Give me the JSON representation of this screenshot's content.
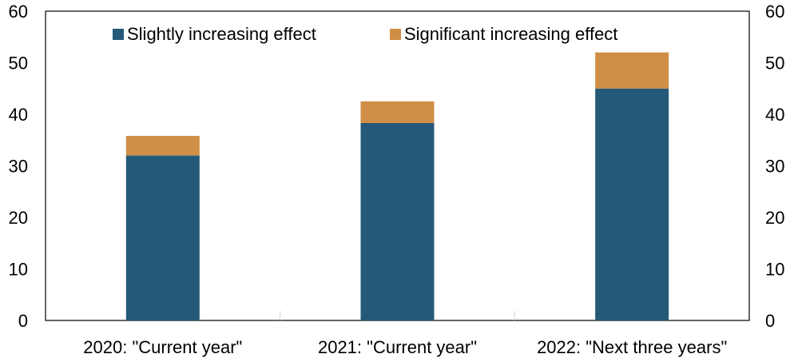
{
  "chart_data": {
    "type": "bar",
    "stacked": true,
    "categories": [
      "2020: \"Current year\"",
      "2021: \"Current year\"",
      "2022: \"Next three years\""
    ],
    "series": [
      {
        "name": "Slightly increasing effect",
        "values": [
          32,
          38.3,
          45
        ],
        "color": "#245a78"
      },
      {
        "name": "Significant increasing effect",
        "values": [
          3.8,
          4.2,
          7
        ],
        "color": "#d08e46"
      }
    ],
    "ylim": [
      0,
      60
    ],
    "yticks": [
      0,
      10,
      20,
      30,
      40,
      50,
      60
    ],
    "secondary_yticks": [
      0,
      10,
      20,
      30,
      40,
      50,
      60
    ],
    "legend_position": "top",
    "grid": false,
    "title": "",
    "xlabel": "",
    "ylabel": ""
  }
}
